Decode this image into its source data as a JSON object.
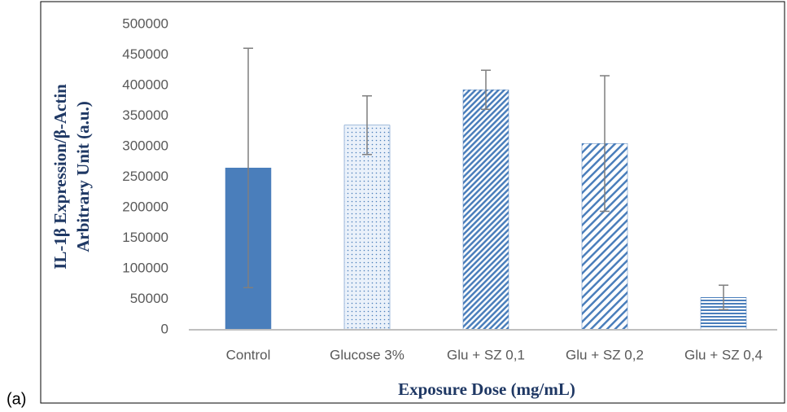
{
  "label": "(a)",
  "chart_data": {
    "type": "bar",
    "categories": [
      "Control",
      "Glucose 3%",
      "Glu + SZ 0,1",
      "Glu + SZ 0,2",
      "Glu + SZ 0,4"
    ],
    "values": [
      265000,
      335000,
      393000,
      305000,
      53000
    ],
    "errors": [
      196000,
      48000,
      32000,
      111000,
      20000
    ],
    "color": "#4a7ebb",
    "patterns": [
      "solid",
      "dots",
      "diagonal-dense",
      "diagonal",
      "horizontal"
    ],
    "ylim": [
      0,
      500000
    ],
    "yticks": [
      0,
      50000,
      100000,
      150000,
      200000,
      250000,
      300000,
      350000,
      400000,
      450000,
      500000
    ],
    "xlabel": "Exposure Dose (mg/mL)",
    "ylabel": [
      "IL-1β Expression/β-Actin",
      "Arbitrary Unit (a.u.)"
    ],
    "grid": false
  }
}
